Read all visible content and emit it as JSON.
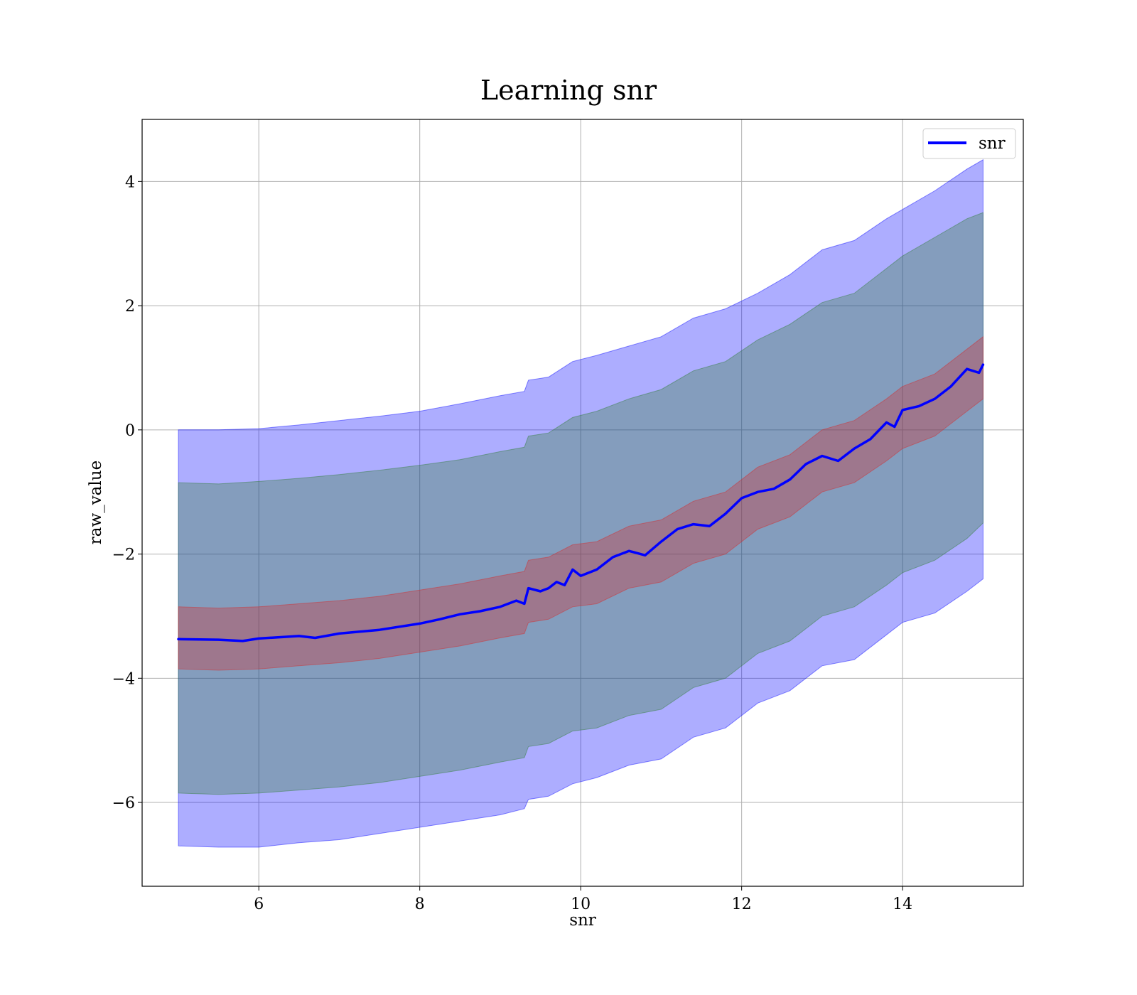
{
  "chart_data": {
    "type": "line",
    "title": "Learning snr",
    "xlabel": "snr",
    "ylabel": "raw_value",
    "xlim": [
      4.55,
      15.5
    ],
    "ylim": [
      -7.35,
      5.0
    ],
    "xticks": [
      6,
      8,
      10,
      12,
      14
    ],
    "yticks": [
      -6,
      -4,
      -2,
      0,
      2,
      4
    ],
    "grid": true,
    "legend": {
      "position": "top-right",
      "entries": [
        {
          "label": "snr",
          "color": "#0000ff"
        }
      ]
    },
    "series": [
      {
        "name": "snr",
        "color": "#0000ff",
        "x": [
          5.0,
          5.5,
          5.8,
          6.0,
          6.5,
          6.7,
          7.0,
          7.5,
          8.0,
          8.25,
          8.5,
          8.75,
          9.0,
          9.2,
          9.3,
          9.35,
          9.5,
          9.6,
          9.7,
          9.8,
          9.9,
          10.0,
          10.2,
          10.4,
          10.6,
          10.8,
          11.0,
          11.2,
          11.4,
          11.6,
          11.8,
          12.0,
          12.2,
          12.4,
          12.6,
          12.8,
          13.0,
          13.2,
          13.4,
          13.6,
          13.8,
          13.9,
          14.0,
          14.2,
          14.4,
          14.6,
          14.8,
          14.95,
          15.0
        ],
        "y": [
          -3.37,
          -3.38,
          -3.4,
          -3.36,
          -3.32,
          -3.35,
          -3.28,
          -3.22,
          -3.12,
          -3.05,
          -2.97,
          -2.92,
          -2.85,
          -2.75,
          -2.8,
          -2.55,
          -2.6,
          -2.55,
          -2.45,
          -2.5,
          -2.25,
          -2.35,
          -2.25,
          -2.05,
          -1.95,
          -2.02,
          -1.8,
          -1.6,
          -1.52,
          -1.55,
          -1.35,
          -1.1,
          -1.0,
          -0.95,
          -0.8,
          -0.55,
          -0.42,
          -0.5,
          -0.3,
          -0.15,
          0.12,
          0.05,
          0.32,
          0.38,
          0.5,
          0.7,
          0.98,
          0.92,
          1.05
        ]
      }
    ],
    "bands": [
      {
        "color": "#0000ff",
        "x": [
          5.0,
          5.5,
          6.0,
          6.5,
          7.0,
          7.5,
          8.0,
          8.5,
          9.0,
          9.3,
          9.35,
          9.6,
          9.9,
          10.2,
          10.6,
          11.0,
          11.4,
          11.8,
          12.2,
          12.6,
          13.0,
          13.4,
          13.8,
          14.0,
          14.4,
          14.8,
          15.0
        ],
        "lower": [
          -6.7,
          -6.72,
          -6.72,
          -6.65,
          -6.6,
          -6.5,
          -6.4,
          -6.3,
          -6.2,
          -6.1,
          -5.95,
          -5.9,
          -5.7,
          -5.6,
          -5.4,
          -5.3,
          -4.95,
          -4.8,
          -4.4,
          -4.2,
          -3.8,
          -3.7,
          -3.3,
          -3.1,
          -2.95,
          -2.6,
          -2.4
        ],
        "upper": [
          0.0,
          0.0,
          0.02,
          0.08,
          0.15,
          0.22,
          0.3,
          0.42,
          0.55,
          0.62,
          0.8,
          0.85,
          1.1,
          1.2,
          1.35,
          1.5,
          1.8,
          1.95,
          2.2,
          2.5,
          2.9,
          3.05,
          3.4,
          3.55,
          3.85,
          4.2,
          4.35
        ]
      },
      {
        "color": "#2e7d32",
        "x": [
          5.0,
          5.5,
          6.0,
          6.5,
          7.0,
          7.5,
          8.0,
          8.5,
          9.0,
          9.3,
          9.35,
          9.6,
          9.9,
          10.2,
          10.6,
          11.0,
          11.4,
          11.8,
          12.2,
          12.6,
          13.0,
          13.4,
          13.8,
          14.0,
          14.4,
          14.8,
          15.0
        ],
        "lower": [
          -5.85,
          -5.87,
          -5.85,
          -5.8,
          -5.75,
          -5.68,
          -5.58,
          -5.48,
          -5.35,
          -5.28,
          -5.1,
          -5.05,
          -4.85,
          -4.8,
          -4.6,
          -4.5,
          -4.15,
          -4.0,
          -3.6,
          -3.4,
          -3.0,
          -2.85,
          -2.5,
          -2.3,
          -2.1,
          -1.75,
          -1.5
        ],
        "upper": [
          -0.85,
          -0.87,
          -0.83,
          -0.78,
          -0.72,
          -0.65,
          -0.57,
          -0.48,
          -0.35,
          -0.28,
          -0.1,
          -0.05,
          0.2,
          0.3,
          0.5,
          0.65,
          0.95,
          1.1,
          1.45,
          1.7,
          2.05,
          2.2,
          2.6,
          2.8,
          3.1,
          3.4,
          3.5
        ]
      },
      {
        "color": "#d62728",
        "x": [
          5.0,
          5.5,
          6.0,
          6.5,
          7.0,
          7.5,
          8.0,
          8.5,
          9.0,
          9.3,
          9.35,
          9.6,
          9.9,
          10.2,
          10.6,
          11.0,
          11.4,
          11.8,
          12.2,
          12.6,
          13.0,
          13.4,
          13.8,
          14.0,
          14.4,
          14.8,
          15.0
        ],
        "lower": [
          -3.85,
          -3.87,
          -3.85,
          -3.8,
          -3.75,
          -3.68,
          -3.58,
          -3.48,
          -3.35,
          -3.28,
          -3.1,
          -3.05,
          -2.85,
          -2.8,
          -2.55,
          -2.45,
          -2.15,
          -2.0,
          -1.6,
          -1.4,
          -1.0,
          -0.85,
          -0.5,
          -0.3,
          -0.1,
          0.3,
          0.5
        ],
        "upper": [
          -2.85,
          -2.87,
          -2.85,
          -2.8,
          -2.75,
          -2.68,
          -2.58,
          -2.48,
          -2.35,
          -2.28,
          -2.1,
          -2.05,
          -1.85,
          -1.8,
          -1.55,
          -1.45,
          -1.15,
          -1.0,
          -0.6,
          -0.4,
          0.0,
          0.15,
          0.5,
          0.7,
          0.9,
          1.3,
          1.5
        ]
      }
    ]
  }
}
